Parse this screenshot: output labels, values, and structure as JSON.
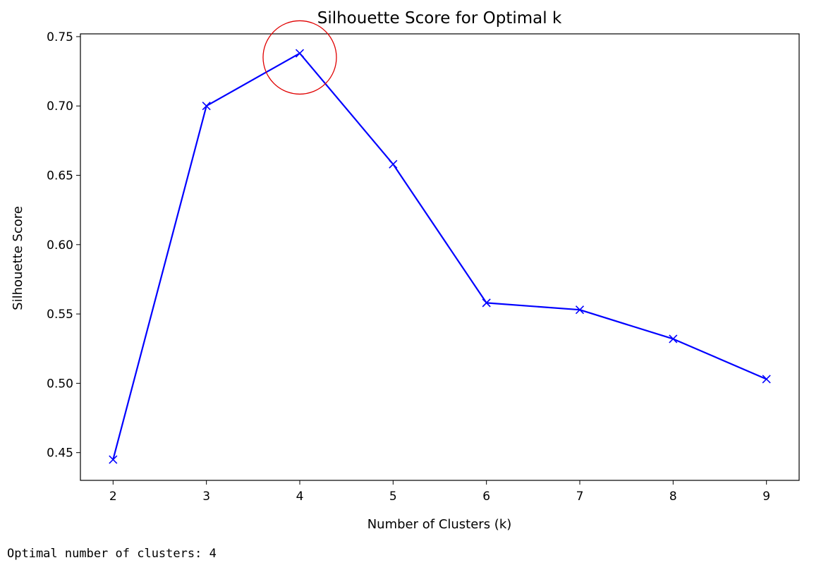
{
  "chart_data": {
    "type": "line",
    "title": "Silhouette Score for Optimal k",
    "xlabel": "Number of Clusters (k)",
    "ylabel": "Silhouette Score",
    "x": [
      2,
      3,
      4,
      5,
      6,
      7,
      8,
      9
    ],
    "y": [
      0.445,
      0.7,
      0.738,
      0.658,
      0.558,
      0.553,
      0.532,
      0.503
    ],
    "xticks": [
      "2",
      "3",
      "4",
      "5",
      "6",
      "7",
      "8",
      "9"
    ],
    "yticks": [
      0.45,
      0.5,
      0.55,
      0.6,
      0.65,
      0.7,
      0.75
    ],
    "ytick_labels": [
      "0.45",
      "0.50",
      "0.55",
      "0.60",
      "0.65",
      "0.70",
      "0.75"
    ],
    "xlim": [
      1.65,
      9.35
    ],
    "ylim": [
      0.43,
      0.752
    ],
    "marker": "x",
    "line_color": "#0000ff",
    "grid": false,
    "annotation": {
      "shape": "circle",
      "x": 4,
      "y": 0.735,
      "color": "#e00000"
    }
  },
  "output": {
    "text": "Optimal number of clusters: 4"
  }
}
